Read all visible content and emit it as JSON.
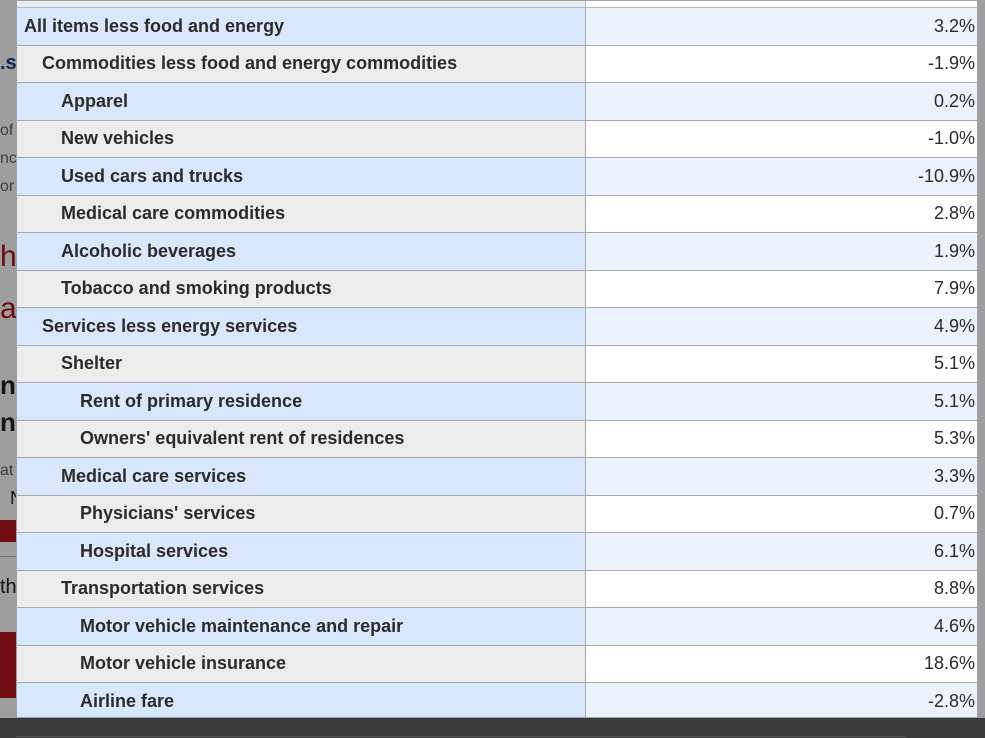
{
  "background": {
    "fragments": [
      ".s",
      "of",
      "nc",
      "or",
      "h",
      "as",
      "n",
      "n",
      "at",
      "N",
      "th"
    ]
  },
  "table": {
    "rows": [
      {
        "label": "All items less food and energy",
        "value": "3.2%",
        "level": 0
      },
      {
        "label": "Commodities less food and energy commodities",
        "value": "-1.9%",
        "level": 1
      },
      {
        "label": "Apparel",
        "value": "0.2%",
        "level": 2
      },
      {
        "label": "New vehicles",
        "value": "-1.0%",
        "level": 2
      },
      {
        "label": "Used cars and trucks",
        "value": "-10.9%",
        "level": 2
      },
      {
        "label": "Medical care commodities",
        "value": "2.8%",
        "level": 2
      },
      {
        "label": "Alcoholic beverages",
        "value": "1.9%",
        "level": 2
      },
      {
        "label": "Tobacco and smoking products",
        "value": "7.9%",
        "level": 2
      },
      {
        "label": "Services less energy services",
        "value": "4.9%",
        "level": 1
      },
      {
        "label": "Shelter",
        "value": "5.1%",
        "level": 2
      },
      {
        "label": "Rent of primary residence",
        "value": "5.1%",
        "level": 3
      },
      {
        "label": "Owners' equivalent rent of residences",
        "value": "5.3%",
        "level": 3
      },
      {
        "label": "Medical care services",
        "value": "3.3%",
        "level": 2
      },
      {
        "label": "Physicians' services",
        "value": "0.7%",
        "level": 3
      },
      {
        "label": "Hospital services",
        "value": "6.1%",
        "level": 3
      },
      {
        "label": "Transportation services",
        "value": "8.8%",
        "level": 2
      },
      {
        "label": "Motor vehicle maintenance and repair",
        "value": "4.6%",
        "level": 3
      },
      {
        "label": "Motor vehicle insurance",
        "value": "18.6%",
        "level": 3
      },
      {
        "label": "Airline fare",
        "value": "-2.8%",
        "level": 3
      }
    ]
  },
  "colors": {
    "label_blue": "#d9e7fc",
    "value_blue": "#ebf2fd",
    "label_gray": "#ececec",
    "value_white": "#ffffff",
    "accent_red": "#b3131b"
  }
}
